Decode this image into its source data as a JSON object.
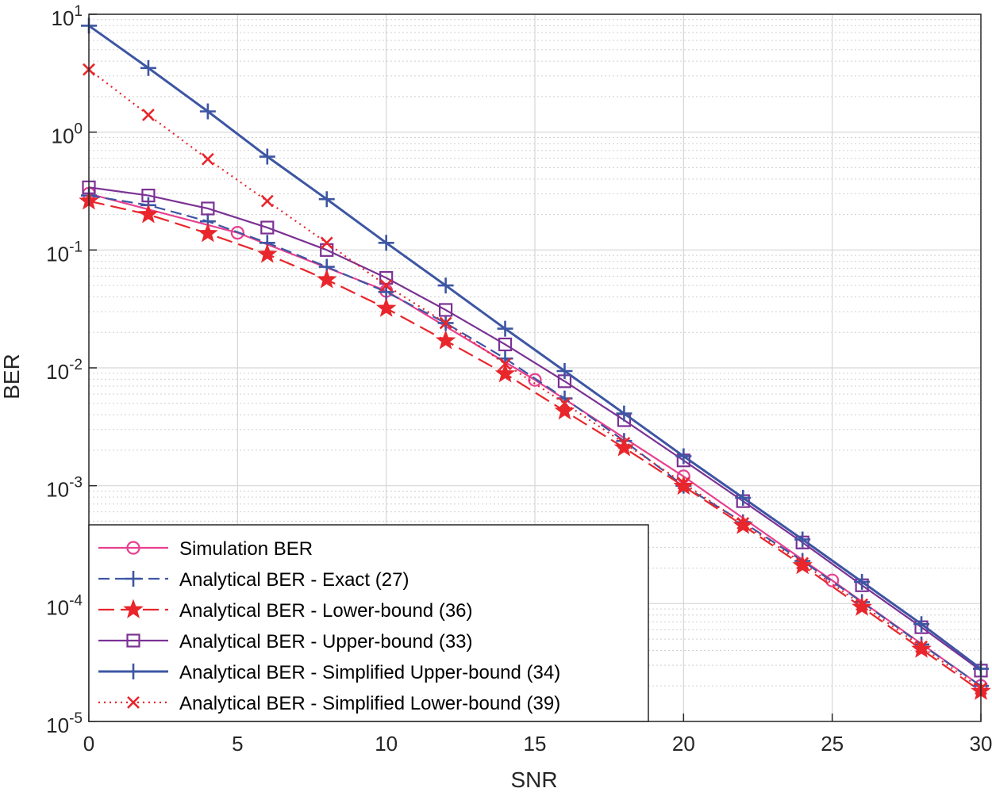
{
  "chart_data": {
    "type": "line",
    "title": "",
    "xlabel": "SNR",
    "ylabel": "BER",
    "xlim": [
      0,
      30
    ],
    "ylim": [
      1e-05,
      10
    ],
    "yscale": "log",
    "grid": true,
    "minor_grid": true,
    "legend_position": "bottom-left",
    "x_ticks": [
      "0",
      "5",
      "10",
      "15",
      "20",
      "25",
      "30"
    ],
    "y_ticks": [
      {
        "base": "10",
        "exp": "1"
      },
      {
        "base": "10",
        "exp": "0"
      },
      {
        "base": "10",
        "exp": "-1"
      },
      {
        "base": "10",
        "exp": "-2"
      },
      {
        "base": "10",
        "exp": "-3"
      },
      {
        "base": "10",
        "exp": "-4"
      },
      {
        "base": "10",
        "exp": "-5"
      }
    ],
    "series": [
      {
        "name": "Simulation BER",
        "color": "#e8408f",
        "dash": "solid",
        "marker": "circle",
        "x": [
          0,
          5,
          10,
          15,
          20,
          25,
          30
        ],
        "y": [
          0.3,
          0.14,
          0.045,
          0.0079,
          0.0012,
          0.000157,
          2e-05
        ]
      },
      {
        "name": "Analytical BER - Exact  (27)",
        "color": "#3d56a3",
        "dash": "dashed",
        "marker": "plus",
        "x": [
          0,
          2,
          4,
          6,
          8,
          10,
          12,
          14,
          16,
          18,
          20,
          22,
          24,
          26,
          28,
          30
        ],
        "y": [
          0.29,
          0.24,
          0.175,
          0.115,
          0.072,
          0.044,
          0.024,
          0.012,
          0.0055,
          0.0024,
          0.001,
          0.00049,
          0.00023,
          0.000103,
          4.5e-05,
          2e-05
        ]
      },
      {
        "name": "Analytical BER - Lower-bound (36)",
        "color": "#e8262c",
        "dash": "longdash",
        "marker": "star",
        "x": [
          0,
          2,
          4,
          6,
          8,
          10,
          12,
          14,
          16,
          18,
          20,
          22,
          24,
          26,
          28,
          30
        ],
        "y": [
          0.26,
          0.2,
          0.138,
          0.092,
          0.056,
          0.032,
          0.017,
          0.0089,
          0.0043,
          0.0021,
          0.00099,
          0.00046,
          0.00021,
          9.3e-05,
          4.1e-05,
          1.8e-05
        ]
      },
      {
        "name": "Analytical BER - Upper-bound (33)",
        "color": "#7b3294",
        "dash": "solid",
        "marker": "square",
        "x": [
          0,
          2,
          4,
          6,
          8,
          10,
          12,
          14,
          16,
          18,
          20,
          22,
          24,
          26,
          28,
          30
        ],
        "y": [
          0.34,
          0.29,
          0.225,
          0.155,
          0.1,
          0.058,
          0.031,
          0.0158,
          0.0077,
          0.0036,
          0.00164,
          0.00074,
          0.00033,
          0.000143,
          6.3e-05,
          2.7e-05
        ]
      },
      {
        "name": "Analytical BER - Simplified Upper-bound (34)",
        "color": "#3d56a3",
        "dash": "solid",
        "marker": "plus",
        "x": [
          0,
          2,
          4,
          6,
          8,
          10,
          12,
          14,
          16,
          18,
          20,
          22,
          24,
          26,
          28,
          30
        ],
        "y": [
          8.0,
          3.5,
          1.5,
          0.62,
          0.27,
          0.115,
          0.05,
          0.0215,
          0.0094,
          0.0041,
          0.00178,
          0.00079,
          0.00035,
          0.000153,
          6.7e-05,
          2.8e-05
        ]
      },
      {
        "name": "Analytical BER - Simplified Lower-bound (39)",
        "color": "#e8262c",
        "dash": "dotted",
        "marker": "x",
        "x": [
          0,
          2,
          4,
          6,
          8,
          10,
          12,
          14,
          16,
          18,
          20,
          22,
          24,
          26,
          28,
          30
        ],
        "y": [
          3.4,
          1.4,
          0.59,
          0.26,
          0.115,
          0.05,
          0.024,
          0.0108,
          0.005,
          0.0023,
          0.00105,
          0.00048,
          0.00022,
          9.8e-05,
          4.3e-05,
          1.9e-05
        ]
      }
    ]
  }
}
